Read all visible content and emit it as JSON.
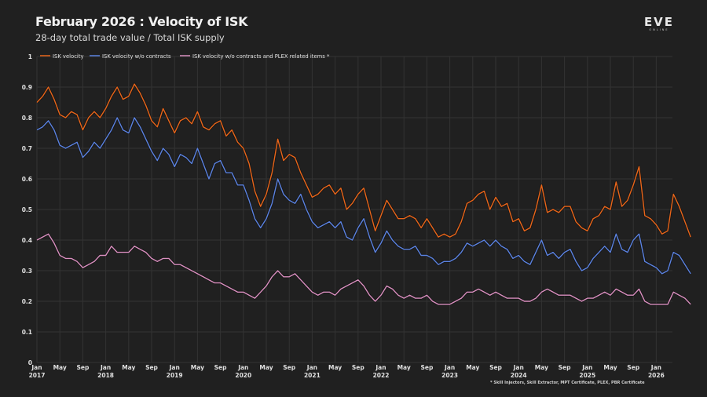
{
  "header": {
    "title": "February 2026 : Velocity of ISK",
    "subtitle": "28-day total trade value / Total ISK supply",
    "logo_main": "EVE",
    "logo_sub": "ONLINE"
  },
  "footnote": "* Skill Injectors, Skill Extractor, MPT Certificate, PLEX, PBR Certificate",
  "chart_data": {
    "type": "line",
    "title": "February 2026 : Velocity of ISK",
    "subtitle": "28-day total trade value / Total ISK supply",
    "xlabel": "",
    "ylabel": "",
    "ylim": [
      0,
      1
    ],
    "yticks": [
      "0",
      "0.1",
      "0.2",
      "0.3",
      "0.4",
      "0.5",
      "0.6",
      "0.7",
      "0.8",
      "0.9",
      "1"
    ],
    "grid": true,
    "legend_position": "top-left",
    "xticks": [
      {
        "month": "Jan",
        "year": "2017"
      },
      {
        "month": "May",
        "year": ""
      },
      {
        "month": "Sep",
        "year": ""
      },
      {
        "month": "Jan",
        "year": "2018"
      },
      {
        "month": "May",
        "year": ""
      },
      {
        "month": "Sep",
        "year": ""
      },
      {
        "month": "Jan",
        "year": "2019"
      },
      {
        "month": "May",
        "year": ""
      },
      {
        "month": "Sep",
        "year": ""
      },
      {
        "month": "Jan",
        "year": "2020"
      },
      {
        "month": "May",
        "year": ""
      },
      {
        "month": "Sep",
        "year": ""
      },
      {
        "month": "Jan",
        "year": "2021"
      },
      {
        "month": "May",
        "year": ""
      },
      {
        "month": "Sep",
        "year": ""
      },
      {
        "month": "Jan",
        "year": "2022"
      },
      {
        "month": "May",
        "year": ""
      },
      {
        "month": "Sep",
        "year": ""
      },
      {
        "month": "Jan",
        "year": "2023"
      },
      {
        "month": "May",
        "year": ""
      },
      {
        "month": "Sep",
        "year": ""
      },
      {
        "month": "Jan",
        "year": "2024"
      },
      {
        "month": "May",
        "year": ""
      },
      {
        "month": "Sep",
        "year": ""
      },
      {
        "month": "Jan",
        "year": "2025"
      },
      {
        "month": "May",
        "year": ""
      },
      {
        "month": "Sep",
        "year": ""
      },
      {
        "month": "Jan",
        "year": "2026"
      }
    ],
    "x_start": "2017-01",
    "x_step": "1 month",
    "series": [
      {
        "name": "ISK velocity",
        "color": "#e8651a",
        "values": [
          0.85,
          0.87,
          0.9,
          0.86,
          0.81,
          0.8,
          0.82,
          0.81,
          0.76,
          0.8,
          0.82,
          0.8,
          0.83,
          0.87,
          0.9,
          0.86,
          0.87,
          0.91,
          0.88,
          0.84,
          0.79,
          0.77,
          0.83,
          0.79,
          0.75,
          0.79,
          0.8,
          0.78,
          0.82,
          0.77,
          0.76,
          0.78,
          0.79,
          0.74,
          0.76,
          0.72,
          0.7,
          0.65,
          0.56,
          0.51,
          0.55,
          0.62,
          0.73,
          0.66,
          0.68,
          0.67,
          0.62,
          0.58,
          0.54,
          0.55,
          0.57,
          0.58,
          0.55,
          0.57,
          0.5,
          0.52,
          0.55,
          0.57,
          0.5,
          0.43,
          0.48,
          0.53,
          0.5,
          0.47,
          0.47,
          0.48,
          0.47,
          0.44,
          0.47,
          0.44,
          0.41,
          0.42,
          0.41,
          0.42,
          0.46,
          0.52,
          0.53,
          0.55,
          0.56,
          0.5,
          0.54,
          0.51,
          0.52,
          0.46,
          0.47,
          0.43,
          0.44,
          0.5,
          0.58,
          0.49,
          0.5,
          0.49,
          0.51,
          0.51,
          0.46,
          0.44,
          0.43,
          0.47,
          0.48,
          0.51,
          0.5,
          0.59,
          0.51,
          0.53,
          0.58,
          0.64,
          0.48,
          0.47,
          0.45,
          0.42,
          0.43,
          0.55,
          0.51,
          0.46,
          0.41
        ]
      },
      {
        "name": "ISK velocity w/o contracts",
        "color": "#5b82e0",
        "values": [
          0.76,
          0.77,
          0.79,
          0.76,
          0.71,
          0.7,
          0.71,
          0.72,
          0.67,
          0.69,
          0.72,
          0.7,
          0.73,
          0.76,
          0.8,
          0.76,
          0.75,
          0.8,
          0.77,
          0.73,
          0.69,
          0.66,
          0.7,
          0.68,
          0.64,
          0.68,
          0.67,
          0.65,
          0.7,
          0.65,
          0.6,
          0.65,
          0.66,
          0.62,
          0.62,
          0.58,
          0.58,
          0.53,
          0.47,
          0.44,
          0.47,
          0.52,
          0.6,
          0.55,
          0.53,
          0.52,
          0.55,
          0.5,
          0.46,
          0.44,
          0.45,
          0.46,
          0.44,
          0.46,
          0.41,
          0.4,
          0.44,
          0.47,
          0.41,
          0.36,
          0.39,
          0.43,
          0.4,
          0.38,
          0.37,
          0.37,
          0.38,
          0.35,
          0.35,
          0.34,
          0.32,
          0.33,
          0.33,
          0.34,
          0.36,
          0.39,
          0.38,
          0.39,
          0.4,
          0.38,
          0.4,
          0.38,
          0.37,
          0.34,
          0.35,
          0.33,
          0.32,
          0.36,
          0.4,
          0.35,
          0.36,
          0.34,
          0.36,
          0.37,
          0.33,
          0.3,
          0.31,
          0.34,
          0.36,
          0.38,
          0.36,
          0.42,
          0.37,
          0.36,
          0.4,
          0.42,
          0.33,
          0.32,
          0.31,
          0.29,
          0.3,
          0.36,
          0.35,
          0.32,
          0.29
        ]
      },
      {
        "name": "ISK velocity w/o contracts and PLEX related items *",
        "color": "#d98fbf",
        "values": [
          0.4,
          0.41,
          0.42,
          0.39,
          0.35,
          0.34,
          0.34,
          0.33,
          0.31,
          0.32,
          0.33,
          0.35,
          0.35,
          0.38,
          0.36,
          0.36,
          0.36,
          0.38,
          0.37,
          0.36,
          0.34,
          0.33,
          0.34,
          0.34,
          0.32,
          0.32,
          0.31,
          0.3,
          0.29,
          0.28,
          0.27,
          0.26,
          0.26,
          0.25,
          0.24,
          0.23,
          0.23,
          0.22,
          0.21,
          0.23,
          0.25,
          0.28,
          0.3,
          0.28,
          0.28,
          0.29,
          0.27,
          0.25,
          0.23,
          0.22,
          0.23,
          0.23,
          0.22,
          0.24,
          0.25,
          0.26,
          0.27,
          0.25,
          0.22,
          0.2,
          0.22,
          0.25,
          0.24,
          0.22,
          0.21,
          0.22,
          0.21,
          0.21,
          0.22,
          0.2,
          0.19,
          0.19,
          0.19,
          0.2,
          0.21,
          0.23,
          0.23,
          0.24,
          0.23,
          0.22,
          0.23,
          0.22,
          0.21,
          0.21,
          0.21,
          0.2,
          0.2,
          0.21,
          0.23,
          0.24,
          0.23,
          0.22,
          0.22,
          0.22,
          0.21,
          0.2,
          0.21,
          0.21,
          0.22,
          0.23,
          0.22,
          0.24,
          0.23,
          0.22,
          0.22,
          0.24,
          0.2,
          0.19,
          0.19,
          0.19,
          0.19,
          0.23,
          0.22,
          0.21,
          0.19
        ]
      }
    ]
  }
}
